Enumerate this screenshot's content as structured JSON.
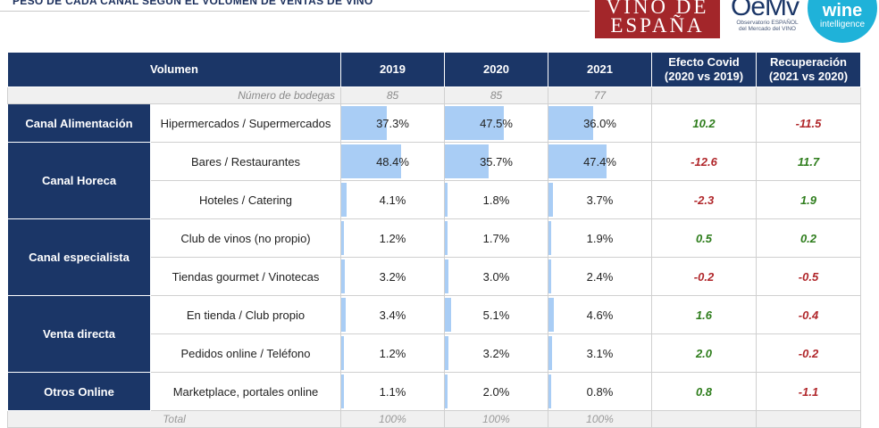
{
  "title": "PESO DE CADA CANAL SEGÚN EL VOLUMEN DE VENTAS DE VINO",
  "logos": {
    "vino_line1": "VINO DE",
    "vino_line2": "ESPAÑA",
    "oemv_mark": "OeMv",
    "oemv_sub1": "Observatorio ESPAÑOL",
    "oemv_sub2": "del Mercado del VINO",
    "wine_line1": "wine",
    "wine_line2": "intelligence"
  },
  "header": {
    "volumen": "Volumen",
    "y2019": "2019",
    "y2020": "2020",
    "y2021": "2021",
    "efecto_l1": "Efecto Covid",
    "efecto_l2": "(2020 vs 2019)",
    "recup_l1": "Recuperación",
    "recup_l2": "(2021 vs 2020)"
  },
  "bodegas": {
    "label": "Número de bodegas",
    "y2019": "85",
    "y2020": "85",
    "y2021": "77"
  },
  "groups": [
    {
      "name": "Canal Alimentación"
    },
    {
      "name": "Canal Horeca"
    },
    {
      "name": "Canal especialista"
    },
    {
      "name": "Venta directa"
    },
    {
      "name": "Otros Online"
    }
  ],
  "rows": [
    {
      "sub": "Hipermercados / Supermercados",
      "v2019": "37.3%",
      "v2020": "47.5%",
      "v2021": "36.0%",
      "f2019": 37.3,
      "f2020": 47.5,
      "f2021": 36.0,
      "efecto": "10.2",
      "recup": "-11.5"
    },
    {
      "sub": "Bares / Restaurantes",
      "v2019": "48.4%",
      "v2020": "35.7%",
      "v2021": "47.4%",
      "f2019": 48.4,
      "f2020": 35.7,
      "f2021": 47.4,
      "efecto": "-12.6",
      "recup": "11.7"
    },
    {
      "sub": "Hoteles / Catering",
      "v2019": "4.1%",
      "v2020": "1.8%",
      "v2021": "3.7%",
      "f2019": 4.1,
      "f2020": 1.8,
      "f2021": 3.7,
      "efecto": "-2.3",
      "recup": "1.9"
    },
    {
      "sub": "Club de vinos (no propio)",
      "v2019": "1.2%",
      "v2020": "1.7%",
      "v2021": "1.9%",
      "f2019": 1.2,
      "f2020": 1.7,
      "f2021": 1.9,
      "efecto": "0.5",
      "recup": "0.2"
    },
    {
      "sub": "Tiendas gourmet / Vinotecas",
      "v2019": "3.2%",
      "v2020": "3.0%",
      "v2021": "2.4%",
      "f2019": 3.2,
      "f2020": 3.0,
      "f2021": 2.4,
      "efecto": "-0.2",
      "recup": "-0.5"
    },
    {
      "sub": "En tienda / Club propio",
      "v2019": "3.4%",
      "v2020": "5.1%",
      "v2021": "4.6%",
      "f2019": 3.4,
      "f2020": 5.1,
      "f2021": 4.6,
      "efecto": "1.6",
      "recup": "-0.4"
    },
    {
      "sub": "Pedidos online / Teléfono",
      "v2019": "1.2%",
      "v2020": "3.2%",
      "v2021": "3.1%",
      "f2019": 1.2,
      "f2020": 3.2,
      "f2021": 3.1,
      "efecto": "2.0",
      "recup": "-0.2"
    },
    {
      "sub": "Marketplace, portales online",
      "v2019": "1.1%",
      "v2020": "2.0%",
      "v2021": "0.8%",
      "f2019": 1.1,
      "f2020": 2.0,
      "f2021": 0.8,
      "efecto": "0.8",
      "recup": "-1.1"
    }
  ],
  "total": {
    "label": "Total",
    "y2019": "100%",
    "y2020": "100%",
    "y2021": "100%"
  },
  "colors": {
    "navy": "#1b3667",
    "bar": "#a9cdf5",
    "positive": "#2e7d1c",
    "negative": "#b0262a"
  }
}
